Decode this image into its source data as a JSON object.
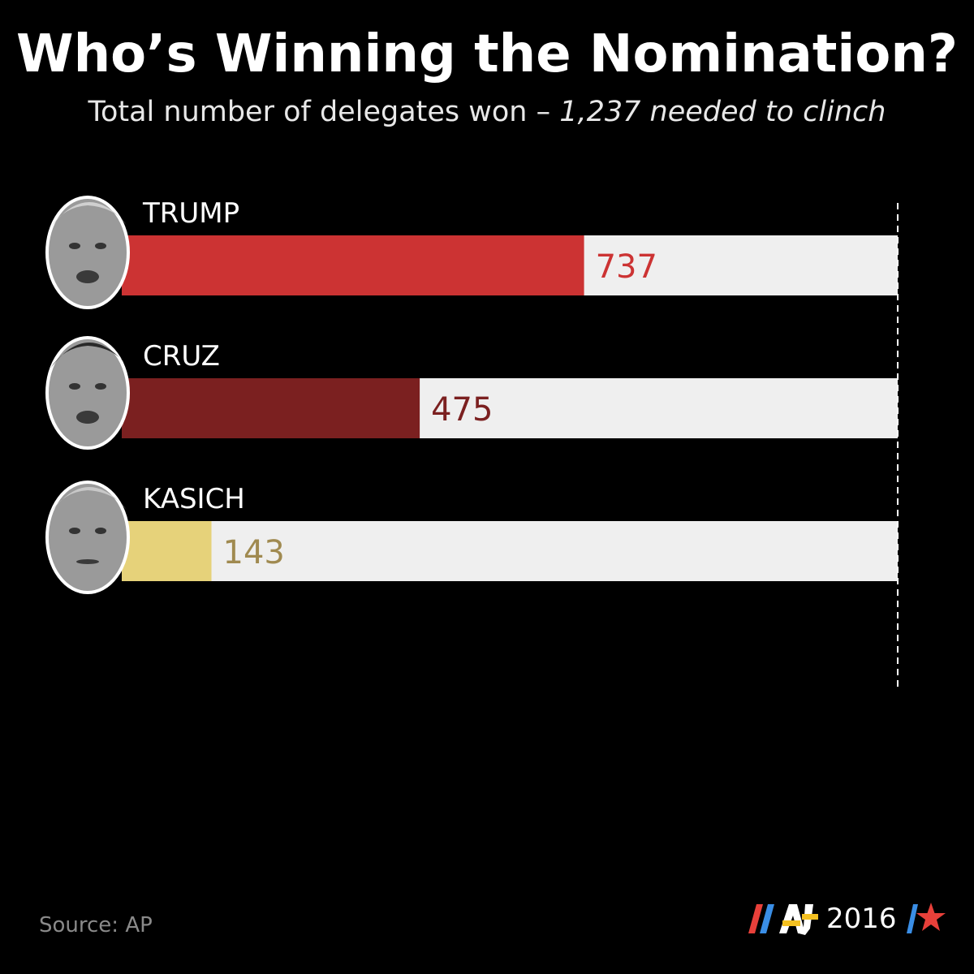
{
  "title": "Who’s Winning the Nomination?",
  "subtitle_main": "Total number of delegates won – ",
  "subtitle_em": "1,237 needed to clinch",
  "chart_data": {
    "type": "bar",
    "orientation": "horizontal",
    "title": "Who’s Winning the Nomination?",
    "subtitle": "Total number of delegates won – 1,237 needed to clinch",
    "categories": [
      "TRUMP",
      "CRUZ",
      "KASICH"
    ],
    "values": [
      737,
      475,
      143
    ],
    "target": 1237,
    "xlim": [
      0,
      1237
    ],
    "colors": [
      "#cc3333",
      "#7b2020",
      "#e6d27a"
    ],
    "label_colors": [
      "#cc3333",
      "#7b2020",
      "#a08a50"
    ],
    "track_color": "#efefef",
    "grid": false
  },
  "source": "Source: AP",
  "logo": {
    "brand": "AJ",
    "year": "2016",
    "colors": {
      "red": "#e8403a",
      "blue": "#3a8ee6",
      "yellow": "#f4c020"
    }
  },
  "icons": [
    "candidate-photo-trump",
    "candidate-photo-cruz",
    "candidate-photo-kasich"
  ]
}
